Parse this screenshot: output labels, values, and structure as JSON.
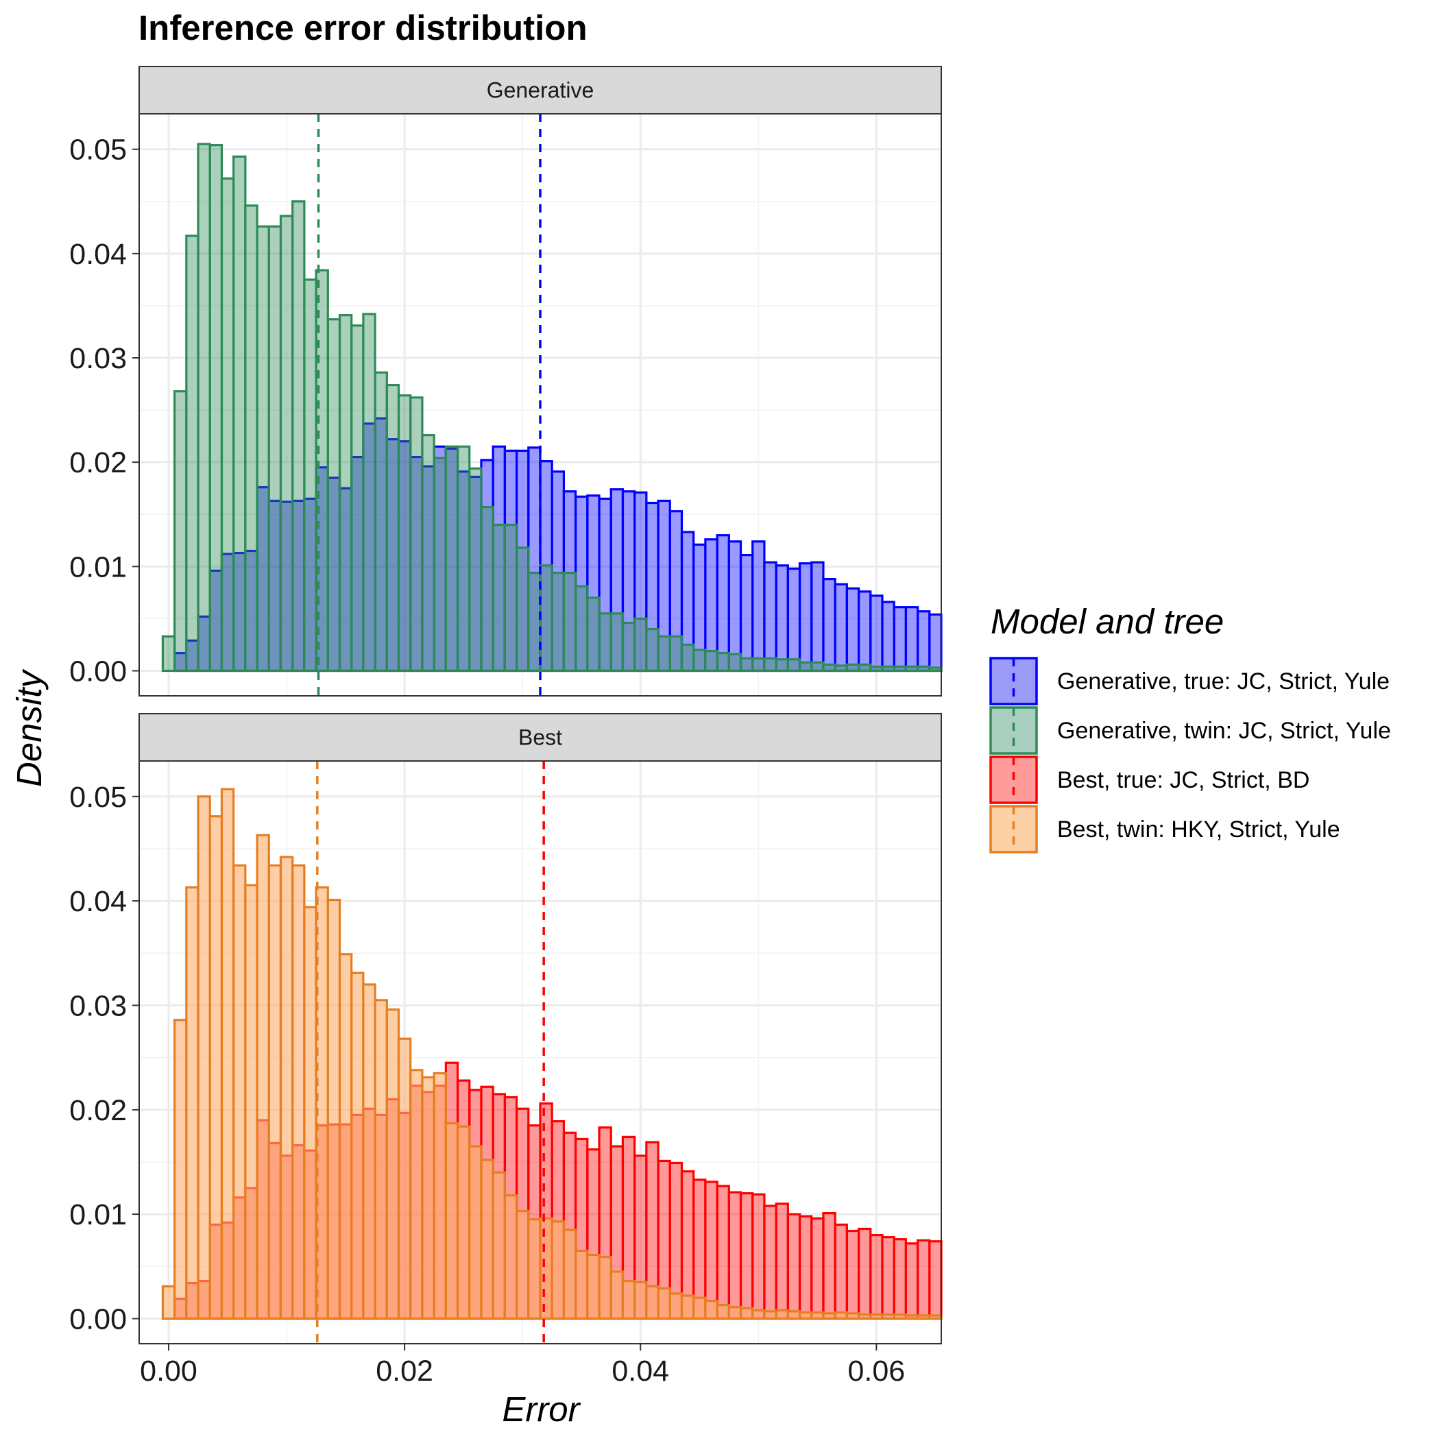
{
  "chart_data": {
    "type": "bar",
    "subtype": "overlaid histogram with mean lines",
    "title": "Inference error distribution",
    "xlabel": "Error",
    "ylabel": "Density",
    "xlim": [
      -0.0025,
      0.0655
    ],
    "ylim": [
      -0.0024,
      0.0534
    ],
    "x_ticks": [
      0.0,
      0.02,
      0.04,
      0.06
    ],
    "x_tick_labels": [
      "0.00",
      "0.02",
      "0.04",
      "0.06"
    ],
    "y_ticks": [
      0.0,
      0.01,
      0.02,
      0.03,
      0.04,
      0.05
    ],
    "y_tick_labels": [
      "0.00",
      "0.01",
      "0.02",
      "0.03",
      "0.04",
      "0.05"
    ],
    "bin_start": -0.0005,
    "bin_width": 0.001,
    "grid": true,
    "legend": {
      "title": "Model and tree",
      "position": "right",
      "entries": [
        {
          "label": "Generative, true: JC, Strict, Yule",
          "fill": "#9b9bf7",
          "stroke": "#0000ff"
        },
        {
          "label": "Generative, twin: JC, Strict, Yule",
          "fill": "#a9cfc1",
          "stroke": "#2e8b57"
        },
        {
          "label": "Best, true: JC, Strict, BD",
          "fill": "#ff9b9b",
          "stroke": "#ff0000"
        },
        {
          "label": "Best, twin: HKY, Strict, Yule",
          "fill": "#fdd1a5",
          "stroke": "#e67e22"
        }
      ]
    },
    "panels": [
      {
        "strip": "Generative",
        "series": [
          {
            "name": "Generative, true: JC, Strict, Yule",
            "fill": "#0000ff",
            "fill_opacity": 0.4,
            "stroke": "#0000ff",
            "mean": 0.0315,
            "values": [
              0,
              0.0017,
              0.0029,
              0.0052,
              0.0096,
              0.0112,
              0.0113,
              0.0115,
              0.0176,
              0.0163,
              0.0162,
              0.0163,
              0.0165,
              0.0195,
              0.0185,
              0.0175,
              0.0205,
              0.0237,
              0.0242,
              0.0222,
              0.022,
              0.0205,
              0.0196,
              0.0215,
              0.0213,
              0.0191,
              0.0186,
              0.0202,
              0.0215,
              0.0211,
              0.0211,
              0.0214,
              0.0201,
              0.0191,
              0.0172,
              0.0167,
              0.0168,
              0.0165,
              0.0174,
              0.0172,
              0.0171,
              0.0161,
              0.0163,
              0.0153,
              0.0133,
              0.0121,
              0.0126,
              0.013,
              0.0124,
              0.0111,
              0.0124,
              0.0104,
              0.0101,
              0.0098,
              0.0103,
              0.0104,
              0.0088,
              0.0083,
              0.0079,
              0.0076,
              0.0072,
              0.0066,
              0.0061,
              0.0061,
              0.0057,
              0.0054
            ]
          },
          {
            "name": "Generative, twin: JC, Strict, Yule",
            "fill": "#2e8b57",
            "fill_opacity": 0.4,
            "stroke": "#2e8b57",
            "mean": 0.0127,
            "values": [
              0.0033,
              0.0268,
              0.0417,
              0.0505,
              0.0504,
              0.0472,
              0.0493,
              0.0446,
              0.0426,
              0.0426,
              0.0436,
              0.045,
              0.0375,
              0.0384,
              0.0337,
              0.0341,
              0.0331,
              0.0342,
              0.0286,
              0.0274,
              0.0264,
              0.0262,
              0.0226,
              0.0204,
              0.0215,
              0.0215,
              0.0194,
              0.0157,
              0.014,
              0.014,
              0.0118,
              0.0094,
              0.0101,
              0.0094,
              0.0094,
              0.0081,
              0.007,
              0.0055,
              0.0055,
              0.0046,
              0.005,
              0.004,
              0.0033,
              0.0033,
              0.0025,
              0.002,
              0.0019,
              0.0017,
              0.0016,
              0.0012,
              0.0012,
              0.0012,
              0.0011,
              0.0011,
              0.0008,
              0.0008,
              0.0006,
              0.0005,
              0.0006,
              0.0006,
              0.0004,
              0.0004,
              0.0004,
              0.0004,
              0.0004,
              0.0003
            ]
          }
        ]
      },
      {
        "strip": "Best",
        "series": [
          {
            "name": "Best, true: JC, Strict, BD",
            "fill": "#ff0000",
            "fill_opacity": 0.4,
            "stroke": "#ff0000",
            "mean": 0.0318,
            "values": [
              0,
              0.0019,
              0.0034,
              0.0036,
              0.009,
              0.0092,
              0.0116,
              0.0125,
              0.019,
              0.0168,
              0.0156,
              0.0166,
              0.0161,
              0.0185,
              0.0186,
              0.0186,
              0.0195,
              0.0201,
              0.0195,
              0.021,
              0.0197,
              0.0223,
              0.0217,
              0.0223,
              0.0245,
              0.0228,
              0.0219,
              0.0222,
              0.0215,
              0.0212,
              0.0201,
              0.0185,
              0.0206,
              0.0189,
              0.0178,
              0.0172,
              0.0162,
              0.0183,
              0.0165,
              0.0174,
              0.0156,
              0.0169,
              0.0151,
              0.0149,
              0.0141,
              0.0133,
              0.0131,
              0.0127,
              0.0121,
              0.012,
              0.0119,
              0.0108,
              0.011,
              0.01,
              0.0098,
              0.0096,
              0.0101,
              0.009,
              0.0084,
              0.0086,
              0.008,
              0.0078,
              0.0076,
              0.0072,
              0.0075,
              0.0074
            ]
          },
          {
            "name": "Best, twin: HKY, Strict, Yule",
            "fill": "#fdae6b",
            "fill_opacity": 0.6,
            "stroke": "#e67e22",
            "mean": 0.0126,
            "values": [
              0.0031,
              0.0286,
              0.0413,
              0.05,
              0.0481,
              0.0507,
              0.0434,
              0.0415,
              0.0463,
              0.0434,
              0.0442,
              0.0434,
              0.0394,
              0.0413,
              0.0401,
              0.0349,
              0.0331,
              0.032,
              0.0305,
              0.0296,
              0.0268,
              0.0238,
              0.0231,
              0.0235,
              0.0187,
              0.0184,
              0.0165,
              0.0152,
              0.014,
              0.0118,
              0.0103,
              0.0095,
              0.0096,
              0.0093,
              0.0085,
              0.0065,
              0.0061,
              0.0059,
              0.0045,
              0.0036,
              0.0035,
              0.0031,
              0.0029,
              0.0024,
              0.0022,
              0.002,
              0.0017,
              0.0013,
              0.0011,
              0.001,
              0.0008,
              0.0007,
              0.0008,
              0.0007,
              0.0006,
              0.0006,
              0.0005,
              0.0006,
              0.0005,
              0.0004,
              0.0004,
              0.0004,
              0.0004,
              0.0003,
              0.0003,
              0.0003
            ]
          }
        ]
      }
    ]
  }
}
